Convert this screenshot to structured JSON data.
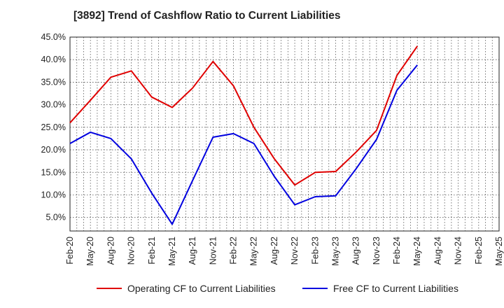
{
  "chart_data": {
    "type": "line",
    "title": "[3892]  Trend of Cashflow Ratio to Current Liabilities",
    "xlabel": "",
    "ylabel": "",
    "ylim": [
      2.0,
      45.0
    ],
    "yticks": [
      "5.0%",
      "10.0%",
      "15.0%",
      "20.0%",
      "25.0%",
      "30.0%",
      "35.0%",
      "40.0%",
      "45.0%"
    ],
    "ytick_values": [
      5,
      10,
      15,
      20,
      25,
      30,
      35,
      40,
      45
    ],
    "categories": [
      "Feb-20",
      "May-20",
      "Aug-20",
      "Nov-20",
      "Feb-21",
      "May-21",
      "Aug-21",
      "Nov-21",
      "Feb-22",
      "May-22",
      "Aug-22",
      "Nov-22",
      "Feb-23",
      "May-23",
      "Aug-23",
      "Nov-23",
      "Feb-24",
      "May-24",
      "Aug-24",
      "Nov-24",
      "Feb-25",
      "May-25"
    ],
    "grid": true,
    "legend_position": "bottom",
    "series": [
      {
        "name": "Operating CF to Current Liabilities",
        "color": "#e00000",
        "values": [
          26.0,
          31.0,
          36.1,
          37.5,
          31.7,
          29.4,
          33.7,
          39.6,
          34.2,
          25.0,
          18.0,
          12.2,
          15.0,
          15.2,
          19.5,
          24.3,
          36.5,
          43.0,
          null,
          null,
          null,
          null
        ]
      },
      {
        "name": "Free CF to Current Liabilities",
        "color": "#0000e0",
        "values": [
          21.4,
          23.9,
          22.5,
          18.0,
          10.4,
          3.5,
          13.2,
          22.8,
          23.6,
          21.4,
          14.1,
          7.8,
          9.6,
          9.8,
          15.8,
          22.3,
          33.2,
          38.8,
          null,
          null,
          null,
          null
        ]
      }
    ]
  }
}
